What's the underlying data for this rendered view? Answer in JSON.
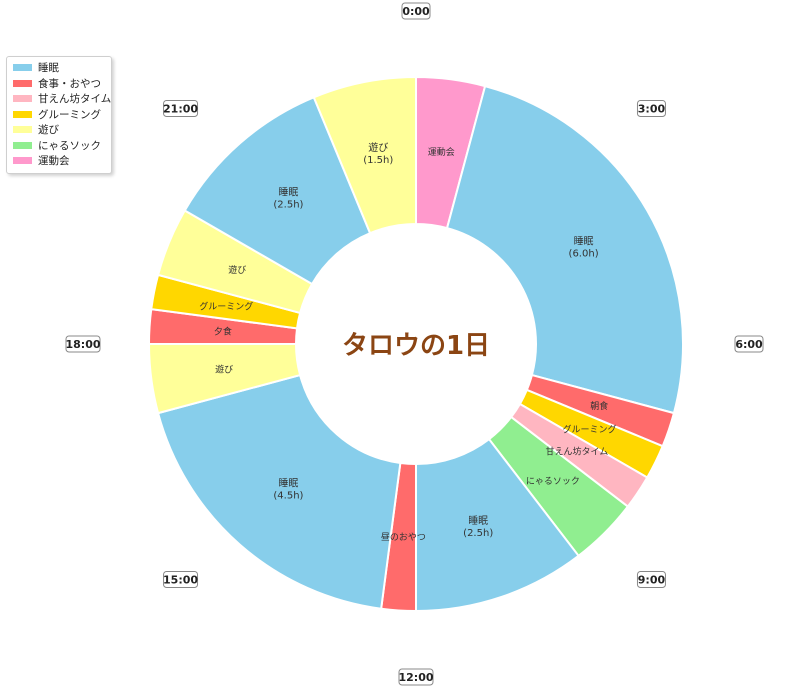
{
  "chart_data": {
    "type": "donut",
    "title": "タロウの1日",
    "direction": "clockwise from top (0:00)",
    "hours_total": 24,
    "time_ticks": [
      "0:00",
      "3:00",
      "6:00",
      "9:00",
      "12:00",
      "15:00",
      "18:00",
      "21:00"
    ],
    "legend": [
      {
        "name": "睡眠",
        "color": "#87CEEB"
      },
      {
        "name": "食事・おやつ",
        "color": "#FF6B6B"
      },
      {
        "name": "甘えん坊タイム",
        "color": "#FFB6C1"
      },
      {
        "name": "グルーミング",
        "color": "#FFD700"
      },
      {
        "name": "遊び",
        "color": "#FFFF99"
      },
      {
        "name": "にゃるソック",
        "color": "#90EE90"
      },
      {
        "name": "運動会",
        "color": "#FF99CC"
      }
    ],
    "legend_position": "top-left",
    "segments": [
      {
        "category": "運動会",
        "label": "運動会",
        "start": 0.0,
        "end": 1.0
      },
      {
        "category": "睡眠",
        "label": "睡眠\n(6.0h)",
        "start": 1.0,
        "end": 7.0
      },
      {
        "category": "食事・おやつ",
        "label": "朝食",
        "start": 7.0,
        "end": 7.5
      },
      {
        "category": "グルーミング",
        "label": "グルーミング",
        "start": 7.5,
        "end": 8.0
      },
      {
        "category": "甘えん坊タイム",
        "label": "甘えん坊タイム",
        "start": 8.0,
        "end": 8.5
      },
      {
        "category": "にゃるソック",
        "label": "にゃるソック",
        "start": 8.5,
        "end": 9.5
      },
      {
        "category": "睡眠",
        "label": "睡眠\n(2.5h)",
        "start": 9.5,
        "end": 12.0
      },
      {
        "category": "食事・おやつ",
        "label": "昼のおやつ",
        "start": 12.0,
        "end": 12.5
      },
      {
        "category": "睡眠",
        "label": "睡眠\n(4.5h)",
        "start": 12.5,
        "end": 17.0
      },
      {
        "category": "遊び",
        "label": "遊び",
        "start": 17.0,
        "end": 18.0
      },
      {
        "category": "食事・おやつ",
        "label": "夕食",
        "start": 18.0,
        "end": 18.5
      },
      {
        "category": "グルーミング",
        "label": "グルーミング",
        "start": 18.5,
        "end": 19.0
      },
      {
        "category": "遊び",
        "label": "遊び",
        "start": 19.0,
        "end": 20.0
      },
      {
        "category": "睡眠",
        "label": "睡眠\n(2.5h)",
        "start": 20.0,
        "end": 22.5
      },
      {
        "category": "遊び",
        "label": "遊び\n(1.5h)",
        "start": 22.5,
        "end": 24.0
      }
    ]
  }
}
